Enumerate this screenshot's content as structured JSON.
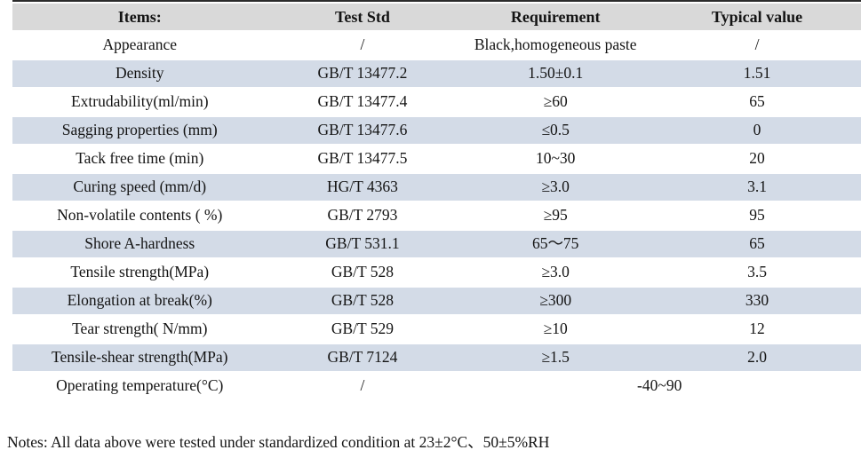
{
  "colors": {
    "header_bg": "#d9d9d9",
    "stripe_bg": "#d3dbe7",
    "top_border": "#2b2b2b"
  },
  "table": {
    "columns": [
      "Items:",
      "Test Std",
      "Requirement",
      "Typical value"
    ],
    "rows": [
      {
        "item": "Appearance",
        "test_std": "/",
        "requirement": "Black,homogeneous paste",
        "typical": "/"
      },
      {
        "item": "Density",
        "test_std": "GB/T 13477.2",
        "requirement": "1.50±0.1",
        "typical": "1.51"
      },
      {
        "item": "Extrudability(ml/min)",
        "test_std": "GB/T 13477.4",
        "requirement": "≥60",
        "typical": "65"
      },
      {
        "item": "Sagging properties (mm)",
        "test_std": "GB/T 13477.6",
        "requirement": "≤0.5",
        "typical": "0"
      },
      {
        "item": "Tack free time (min)",
        "test_std": "GB/T 13477.5",
        "requirement": "10~30",
        "typical": "20"
      },
      {
        "item": "Curing speed (mm/d)",
        "test_std": "HG/T 4363",
        "requirement": "≥3.0",
        "typical": "3.1"
      },
      {
        "item": "Non-volatile contents ( %)",
        "test_std": "GB/T 2793",
        "requirement": "≥95",
        "typical": "95"
      },
      {
        "item": "Shore A-hardness",
        "test_std": "GB/T 531.1",
        "requirement": "65～75",
        "typical": "65"
      },
      {
        "item": "Tensile strength(MPa)",
        "test_std": "GB/T 528",
        "requirement": "≥3.0",
        "typical": "3.5"
      },
      {
        "item": "Elongation at break(%)",
        "test_std": "GB/T 528",
        "requirement": "≥300",
        "typical": "330"
      },
      {
        "item": "Tear strength( N/mm)",
        "test_std": "GB/T 529",
        "requirement": "≥10",
        "typical": "12"
      },
      {
        "item": "Tensile-shear strength(MPa)",
        "test_std": "GB/T 7124",
        "requirement": "≥1.5",
        "typical": "2.0"
      },
      {
        "item": "Operating temperature(°C)",
        "test_std": "/",
        "requirement": "-40~90"
      }
    ]
  },
  "notes": "Notes: All data above were tested under standardized condition at 23±2°C、50±5%RH"
}
